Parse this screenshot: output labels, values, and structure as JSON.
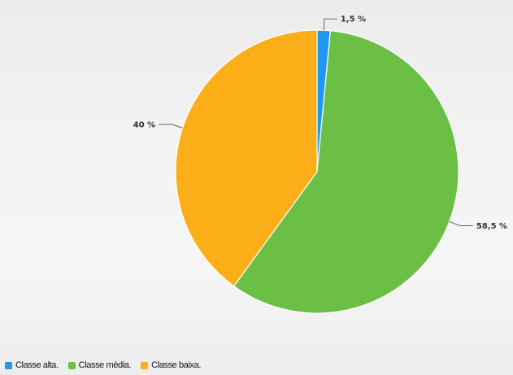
{
  "chart_data": {
    "type": "pie",
    "categories": [
      "Classe alta.",
      "Classe média.",
      "Classe baixa."
    ],
    "values": [
      1.5,
      58.5,
      40
    ],
    "data_labels": [
      "1,5 %",
      "58,5 %",
      "40 %"
    ],
    "colors": [
      "#2196f3",
      "#6cbf45",
      "#fbae17"
    ],
    "start_angle_deg": 0,
    "direction": "clockwise",
    "legend_position": "bottom-left",
    "title": ""
  }
}
